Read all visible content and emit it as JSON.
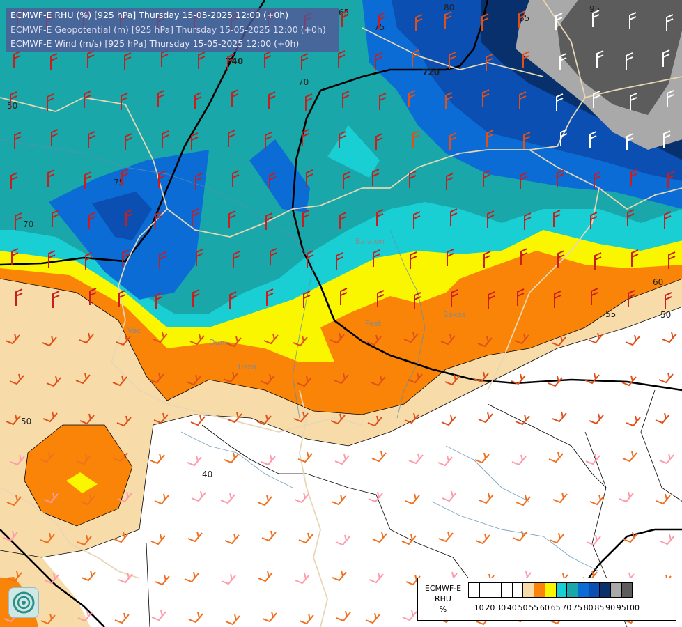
{
  "header": {
    "line1": "ECMWF-E RHU (%) [925 hPa] Thursday 15-05-2025 12:00 (+0h)",
    "line2": "ECMWF-E Geopotential (m) [925 hPa] Thursday 15-05-2025 12:00 (+0h)",
    "line3": "ECMWF-E Wind (m/s) [925 hPa] Thursday 15-05-2025 12:00 (+0h)"
  },
  "legend": {
    "title_lines": [
      "ECMWF-E",
      "RHU",
      "%"
    ],
    "colors": [
      "#ffffff",
      "#ffffff",
      "#ffffff",
      "#ffffff",
      "#ffffff",
      "#f7dba8",
      "#f98407",
      "#f9f600",
      "#19cfd3",
      "#19a7a9",
      "#0b6cd6",
      "#0a4fb1",
      "#08306d",
      "#a9a9a9",
      "#5c5c5c"
    ],
    "ticks": [
      "10",
      "20",
      "30",
      "40",
      "50",
      "55",
      "60",
      "65",
      "70",
      "75",
      "80",
      "85",
      "90",
      "95",
      "100"
    ]
  },
  "contour_labels": {
    "rhu": [
      "50",
      "75",
      "70",
      "70",
      "75",
      "80",
      "95",
      "85",
      "55",
      "50",
      "50",
      "40",
      "60",
      "65"
    ],
    "geopotential": [
      "740",
      "720"
    ]
  },
  "place_labels": [
    "Pest",
    "Békés",
    "Tisza",
    "Duna",
    "Vác",
    "Balaton"
  ],
  "logo": {
    "icon": "ecmwf-swirl-icon"
  },
  "colors": {
    "rhu_50": "#f7dba8",
    "rhu_55": "#f98407",
    "rhu_60": "#f9f600",
    "rhu_65": "#19cfd3",
    "rhu_70": "#19a7a9",
    "rhu_75": "#0b6cd6",
    "rhu_80": "#0a4fb1",
    "rhu_85": "#08306d",
    "rhu_90": "#a9a9a9",
    "rhu_95": "#5c5c5c"
  }
}
